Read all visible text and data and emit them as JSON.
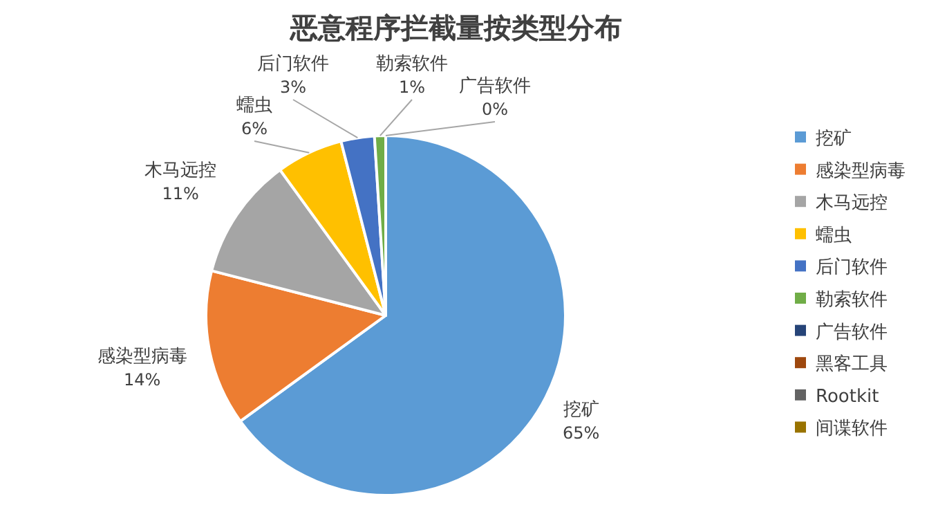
{
  "chart_data": {
    "type": "pie",
    "title": "恶意程序拦截量按类型分布",
    "categories": [
      "挖矿",
      "感染型病毒",
      "木马远控",
      "蠕虫",
      "后门软件",
      "勒索软件",
      "广告软件",
      "黑客工具",
      "Rootkit",
      "间谍软件"
    ],
    "values": [
      65,
      14,
      11,
      6,
      3,
      1,
      0,
      0,
      0,
      0
    ],
    "value_labels": [
      "65%",
      "14%",
      "11%",
      "6%",
      "3%",
      "1%",
      "0%",
      null,
      null,
      null
    ],
    "colors": [
      "#5b9bd5",
      "#ed7d31",
      "#a5a5a5",
      "#ffc000",
      "#4472c4",
      "#70ad47",
      "#264478",
      "#9e480e",
      "#636363",
      "#997300"
    ],
    "legend": "right"
  }
}
